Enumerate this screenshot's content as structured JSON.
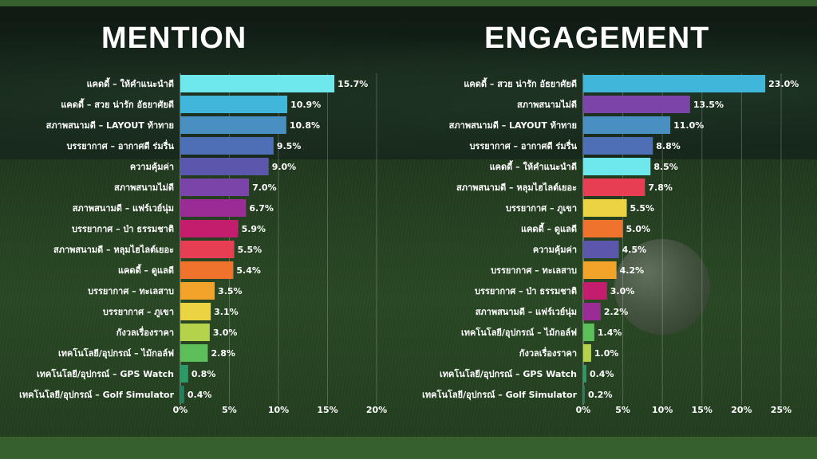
{
  "chart_data": [
    {
      "type": "bar",
      "orientation": "horizontal",
      "title": "MENTION",
      "categories": [
        "แคดดี้ – ให้คำแนะนำดี",
        "แคดดี้ – สวย น่ารัก อัธยาศัยดี",
        "สภาพสนามดี – LAYOUT ท้าทาย",
        "บรรยากาศ – อากาศดี ร่มรื่น",
        "ความคุ้มค่า",
        "สภาพสนามไม่ดี",
        "สภาพสนามดี – แฟร์เวย์นุ่ม",
        "บรรยากาศ – ป่า ธรรมชาติ",
        "สภาพสนามดี – หลุมไฮไลต์เยอะ",
        "แคดดี้ – ดูแลดี",
        "บรรยากาศ – ทะเลสาบ",
        "บรรยากาศ – ภูเขา",
        "กังวลเรื่องราคา",
        "เทคโนโลยี/อุปกรณ์ – ไม้กอล์ฟ",
        "เทคโนโลยี/อุปกรณ์ – GPS Watch",
        "เทคโนโลยี/อุปกรณ์ – Golf Simulator"
      ],
      "values": [
        15.7,
        10.9,
        10.8,
        9.5,
        9.0,
        7.0,
        6.7,
        5.9,
        5.5,
        5.4,
        3.5,
        3.1,
        3.0,
        2.8,
        0.8,
        0.4
      ],
      "value_labels": [
        "15.7%",
        "10.9%",
        "10.8%",
        "9.5%",
        "9.0%",
        "7.0%",
        "6.7%",
        "5.9%",
        "5.5%",
        "5.4%",
        "3.5%",
        "3.1%",
        "3.0%",
        "2.8%",
        "0.8%",
        "0.4%"
      ],
      "colors": [
        "#6ee8ec",
        "#3fb6da",
        "#4a8fc2",
        "#4d6fb5",
        "#5a57ad",
        "#7a44a8",
        "#9b2c96",
        "#c41d6e",
        "#e83e54",
        "#f0732d",
        "#f2a42a",
        "#ecd342",
        "#b5d24b",
        "#5cbf5a",
        "#2c9a66",
        "#1f7f5e"
      ],
      "xlim": [
        0,
        20
      ],
      "xticks": [
        "0%",
        "5%",
        "10%",
        "15%",
        "20%"
      ],
      "xtick_values": [
        0,
        5,
        10,
        15,
        20
      ],
      "grid": true
    },
    {
      "type": "bar",
      "orientation": "horizontal",
      "title": "ENGAGEMENT",
      "categories": [
        "แคดดี้ – สวย น่ารัก อัธยาศัยดี",
        "สภาพสนามไม่ดี",
        "สภาพสนามดี – LAYOUT ท้าทาย",
        "บรรยากาศ – อากาศดี ร่มรื่น",
        "แคดดี้ – ให้คำแนะนำดี",
        "สภาพสนามดี – หลุมไฮไลต์เยอะ",
        "บรรยากาศ – ภูเขา",
        "แคดดี้ – ดูแลดี",
        "ความคุ้มค่า",
        "บรรยากาศ – ทะเลสาบ",
        "บรรยากาศ – ป่า ธรรมชาติ",
        "สภาพสนามดี – แฟร์เวย์นุ่ม",
        "เทคโนโลยี/อุปกรณ์ – ไม้กอล์ฟ",
        "กังวลเรื่องราคา",
        "เทคโนโลยี/อุปกรณ์ – GPS Watch",
        "เทคโนโลยี/อุปกรณ์ – Golf Simulator"
      ],
      "values": [
        23.0,
        13.5,
        11.0,
        8.8,
        8.5,
        7.8,
        5.5,
        5.0,
        4.5,
        4.2,
        3.0,
        2.2,
        1.4,
        1.0,
        0.4,
        0.2
      ],
      "value_labels": [
        "23.0%",
        "13.5%",
        "11.0%",
        "8.8%",
        "8.5%",
        "7.8%",
        "5.5%",
        "5.0%",
        "4.5%",
        "4.2%",
        "3.0%",
        "2.2%",
        "1.4%",
        "1.0%",
        "0.4%",
        "0.2%"
      ],
      "colors": [
        "#3fb6da",
        "#7a44a8",
        "#4a8fc2",
        "#4d6fb5",
        "#6ee8ec",
        "#e83e54",
        "#ecd342",
        "#f0732d",
        "#5a57ad",
        "#f2a42a",
        "#c41d6e",
        "#9b2c96",
        "#5cbf5a",
        "#b5d24b",
        "#2c9a66",
        "#1f7f5e"
      ],
      "xlim": [
        0,
        25
      ],
      "xticks": [
        "0%",
        "5%",
        "10%",
        "15%",
        "20%",
        "25%"
      ],
      "xtick_values": [
        0,
        5,
        10,
        15,
        20,
        25
      ],
      "grid": true
    }
  ]
}
